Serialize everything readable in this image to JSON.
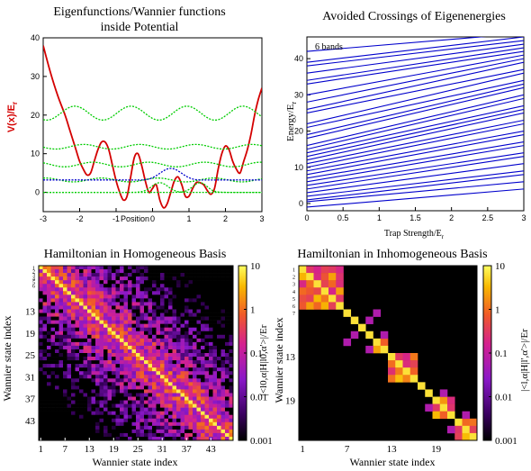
{
  "chart_data": [
    {
      "id": "potential",
      "type": "line",
      "title_lines": [
        "Eigenfunctions/Wannier functions",
        "inside Potential"
      ],
      "xlabel": "Position",
      "ylabel": "V(x)/E",
      "ylabel_sub": "r",
      "xlim": [
        -3,
        3
      ],
      "ylim": [
        -5,
        40
      ],
      "xticks": [
        -3,
        -2,
        -1,
        0,
        1,
        2,
        3
      ],
      "yticks": [
        0,
        10,
        20,
        30,
        40
      ],
      "series": [
        {
          "kind": "potential",
          "color": "#d40000",
          "x": [
            -3.0,
            -2.8,
            -2.6,
            -2.4,
            -2.3,
            -2.2,
            -2.1,
            -2.0,
            -1.9,
            -1.8,
            -1.7,
            -1.6,
            -1.5,
            -1.4,
            -1.3,
            -1.2,
            -1.1,
            -1.0,
            -0.9,
            -0.8,
            -0.7,
            -0.6,
            -0.5,
            -0.4,
            -0.3,
            -0.2,
            -0.1,
            0.0,
            0.1,
            0.2,
            0.3,
            0.4,
            0.5,
            0.6,
            0.7,
            0.8,
            0.9,
            1.0,
            1.1,
            1.2,
            1.3,
            1.4,
            1.5,
            1.6,
            1.7,
            1.8,
            1.9,
            2.0,
            2.1,
            2.2,
            2.3,
            2.4,
            2.5,
            2.6,
            2.7,
            2.8,
            2.9,
            3.0
          ],
          "y": [
            38,
            31,
            25,
            20,
            17,
            14,
            11,
            8,
            6,
            4.5,
            5,
            8,
            11,
            13,
            13,
            11,
            7,
            3,
            0,
            -2,
            -1,
            4,
            9,
            10,
            7,
            3,
            0,
            1,
            2,
            -2,
            -4,
            -3,
            0,
            3,
            4,
            2,
            -1,
            -1,
            1,
            2.5,
            2.5,
            2,
            0.5,
            -0.5,
            1,
            6,
            10,
            12,
            11,
            8,
            6,
            5,
            8,
            11,
            15,
            20,
            24,
            27
          ]
        },
        {
          "kind": "level",
          "color": "#00cc00",
          "y0": 3.2,
          "amp": 0.5
        },
        {
          "kind": "level",
          "color": "#00cc00",
          "y0": 7.2,
          "amp": 0.6
        },
        {
          "kind": "level",
          "color": "#00cc00",
          "y0": 11.8,
          "amp": 0.6
        },
        {
          "kind": "level",
          "color": "#00cc00",
          "y0": 20.5,
          "amp": 1.8
        },
        {
          "kind": "wf",
          "color": "#00cc00",
          "y0": 0,
          "center": 0.2,
          "width": 0.35,
          "amp": 2.5
        },
        {
          "kind": "wf",
          "color": "#00cc00",
          "y0": 0,
          "center": 1.3,
          "width": 0.3,
          "amp": 2.5
        },
        {
          "kind": "wf",
          "color": "#0000cc",
          "y0": 3.2,
          "center": 0.5,
          "width": 0.5,
          "amp": 3.0
        }
      ]
    },
    {
      "id": "crossings",
      "type": "line",
      "title": "Avoided Crossings of Eigenenergies",
      "annotation": "6 bands",
      "xlabel": "Trap Strength/E",
      "xlabel_sub": "r",
      "ylabel": "Energy/E",
      "ylabel_sub": "r",
      "xlim": [
        0,
        3
      ],
      "ylim": [
        -2,
        46
      ],
      "xticks": [
        0,
        0.5,
        1,
        1.5,
        2,
        2.5,
        3
      ],
      "yticks": [
        0,
        10,
        20,
        30,
        40
      ],
      "color": "#0000cc",
      "lines": [
        [
          -1,
          4
        ],
        [
          0.5,
          6
        ],
        [
          1,
          8
        ],
        [
          2,
          9
        ],
        [
          3,
          11
        ],
        [
          4,
          13
        ],
        [
          5,
          14
        ],
        [
          6,
          16
        ],
        [
          7,
          17
        ],
        [
          8,
          19
        ],
        [
          9,
          20
        ],
        [
          10,
          22
        ],
        [
          11,
          23
        ],
        [
          12,
          25
        ],
        [
          13,
          26
        ],
        [
          14,
          27
        ],
        [
          15,
          29
        ],
        [
          16,
          30
        ],
        [
          18,
          32
        ],
        [
          19,
          33
        ],
        [
          21,
          34
        ],
        [
          22,
          36
        ],
        [
          25,
          37
        ],
        [
          26,
          39
        ],
        [
          28,
          40
        ],
        [
          30,
          41
        ],
        [
          33,
          42
        ],
        [
          34,
          43
        ],
        [
          36,
          44
        ],
        [
          38,
          45
        ],
        [
          39,
          46
        ],
        [
          42,
          47
        ]
      ]
    },
    {
      "id": "homog",
      "type": "heatmap",
      "title": "Hamiltonian in Homogeneous Basis",
      "xlabel": "Wannier state index",
      "ylabel": "Wannier state index",
      "n": 48,
      "xticks": [
        1,
        7,
        13,
        19,
        25,
        31,
        37,
        43
      ],
      "yticks": [
        13,
        19,
        25,
        31,
        37,
        43
      ],
      "yticks_small": [
        1,
        2,
        3,
        4,
        5,
        6
      ],
      "colorbar_ticks": [
        "10",
        "1",
        "0.1",
        "0.01",
        "0.001"
      ],
      "colorbar_label": "|<l",
      "colorbar_label_full": "|<l0,α|H|l0,α'>|/Er"
    },
    {
      "id": "inhomog",
      "type": "heatmap",
      "title": "Hamiltonian in Inhomogeneous Basis",
      "xlabel": "Wannier state index",
      "ylabel": "Wannier state index",
      "n": 24,
      "xticks": [
        1,
        7,
        13,
        19
      ],
      "yticks": [
        13,
        19
      ],
      "yticks_small": [
        1,
        2,
        3,
        4,
        5,
        6,
        7
      ],
      "colorbar_ticks": [
        "10",
        "1",
        "0.1",
        "0.01",
        "0.001"
      ],
      "colorbar_label_full": "|<l,α|H|l',α'>|/Er"
    }
  ]
}
